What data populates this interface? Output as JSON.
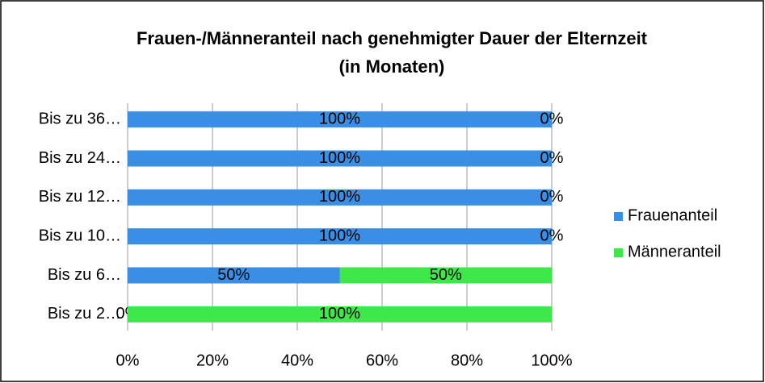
{
  "chart_data": {
    "type": "stacked_barh",
    "title": "Frauen-/Männeranteil nach genehmigter Dauer der Elternzeit (in Monaten)",
    "categories": [
      "Bis zu 36…",
      "Bis zu 24…",
      "Bis zu 12…",
      "Bis zu 10…",
      "Bis zu 6…",
      "Bis zu 2…"
    ],
    "series": [
      {
        "name": "Frauenanteil",
        "color": "#3a8ee4",
        "values": [
          100,
          100,
          100,
          100,
          50,
          0
        ],
        "value_labels": [
          "100%",
          "100%",
          "100%",
          "100%",
          "50%",
          "0%"
        ]
      },
      {
        "name": "Männeranteil",
        "color": "#3fe84a",
        "values": [
          0,
          0,
          0,
          0,
          50,
          100
        ],
        "value_labels": [
          "0%",
          "0%",
          "0%",
          "0%",
          "50%",
          "100%"
        ]
      }
    ],
    "xlim": [
      0,
      100
    ],
    "xticks": [
      {
        "value": 0,
        "label": "0%"
      },
      {
        "value": 20,
        "label": "20%"
      },
      {
        "value": 40,
        "label": "40%"
      },
      {
        "value": 60,
        "label": "60%"
      },
      {
        "value": 80,
        "label": "80%"
      },
      {
        "value": 100,
        "label": "100%"
      }
    ],
    "grid": true,
    "legend": "right"
  }
}
